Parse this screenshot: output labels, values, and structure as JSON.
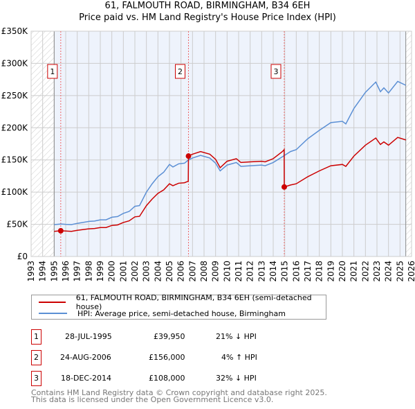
{
  "title_line1": "61, FALMOUTH ROAD, BIRMINGHAM, B34 6EH",
  "title_line2": "Price paid vs. HM Land Registry's House Price Index (HPI)",
  "chart_data": {
    "type": "line",
    "title": "61, FALMOUTH ROAD, BIRMINGHAM, B34 6EH — Price paid vs. HM Land Registry's House Price Index (HPI)",
    "xlabel": "",
    "ylabel": "",
    "xlim": [
      1993,
      2026
    ],
    "ylim": [
      0,
      350000
    ],
    "grid": true,
    "x_ticks": [
      1993,
      1994,
      1995,
      1996,
      1997,
      1998,
      1999,
      2000,
      2001,
      2002,
      2003,
      2004,
      2005,
      2006,
      2007,
      2008,
      2009,
      2010,
      2011,
      2012,
      2013,
      2014,
      2015,
      2016,
      2017,
      2018,
      2019,
      2020,
      2021,
      2022,
      2023,
      2024,
      2025,
      2026
    ],
    "y_ticks": [
      {
        "value": 0,
        "label": "£0"
      },
      {
        "value": 50000,
        "label": "£50K"
      },
      {
        "value": 100000,
        "label": "£100K"
      },
      {
        "value": 150000,
        "label": "£150K"
      },
      {
        "value": 200000,
        "label": "£200K"
      },
      {
        "value": 250000,
        "label": "£250K"
      },
      {
        "value": 300000,
        "label": "£300K"
      },
      {
        "value": 350000,
        "label": "£350K"
      }
    ],
    "shaded_range": [
      1995.0,
      2025.5
    ],
    "hatched_ranges": [
      [
        1993,
        1995.0
      ],
      [
        2025.5,
        2026
      ]
    ],
    "legend_placement": "below",
    "series": [
      {
        "name": "61, FALMOUTH ROAD, BIRMINGHAM, B34 6EH (semi-detached house)",
        "color": "#cc0000",
        "x": [
          1995.0,
          1995.57,
          1996,
          1996.5,
          1997,
          1998,
          1998.5,
          1999,
          1999.5,
          2000,
          2000.5,
          2001,
          2001.5,
          2002,
          2002.4,
          2003,
          2003.5,
          2004,
          2004.5,
          2005,
          2005.3,
          2005.8,
          2006.3,
          2006.63,
          2006.65,
          2007,
          2007.7,
          2008.5,
          2009,
          2009.4,
          2010,
          2010.8,
          2011.2,
          2012,
          2013,
          2013.3,
          2014,
          2014.8,
          2014.95,
          2014.96,
          2015.5,
          2016,
          2017,
          2018,
          2019,
          2020,
          2020.3,
          2021,
          2022,
          2022.9,
          2023.3,
          2023.6,
          2024,
          2024.8,
          2025.5
        ],
        "y": [
          39100,
          39950,
          39500,
          39100,
          40700,
          43000,
          43500,
          45000,
          45000,
          48200,
          49000,
          52900,
          55300,
          61600,
          62400,
          79000,
          89300,
          98000,
          103500,
          113000,
          110000,
          113800,
          114600,
          117000,
          156000,
          159000,
          163000,
          159000,
          151000,
          138000,
          148000,
          152000,
          146000,
          147000,
          148000,
          147000,
          152000,
          163000,
          166000,
          108000,
          111000,
          113000,
          124000,
          133000,
          141000,
          143000,
          140000,
          156000,
          173000,
          184000,
          174000,
          178000,
          173000,
          185000,
          181000
        ]
      },
      {
        "name": "HPI: Average price, semi-detached house, Birmingham",
        "color": "#5b8fd4",
        "x": [
          1995.0,
          1995.6,
          1996,
          1996.5,
          1997,
          1998,
          1998.5,
          1999,
          1999.5,
          2000,
          2000.5,
          2001,
          2001.5,
          2002,
          2002.4,
          2003,
          2003.5,
          2004,
          2004.5,
          2005,
          2005.3,
          2005.8,
          2006.3,
          2006.65,
          2007,
          2007.7,
          2008.5,
          2009,
          2009.4,
          2010,
          2010.8,
          2011.2,
          2012,
          2013,
          2013.3,
          2014,
          2014.8,
          2015.5,
          2016,
          2017,
          2018,
          2019,
          2020,
          2020.3,
          2021,
          2022,
          2022.9,
          2023.3,
          2023.6,
          2024,
          2024.8,
          2025.5
        ],
        "y": [
          49500,
          50500,
          50000,
          49500,
          51500,
          54500,
          55000,
          57000,
          57000,
          61000,
          62000,
          67000,
          70000,
          78000,
          79000,
          100000,
          113000,
          124000,
          131000,
          143000,
          139000,
          144000,
          145000,
          150000,
          153000,
          157000,
          153000,
          145000,
          133000,
          142000,
          146000,
          140000,
          141000,
          142000,
          141000,
          146000,
          155000,
          163000,
          166000,
          183000,
          196000,
          208000,
          210000,
          206000,
          230000,
          255000,
          271000,
          256000,
          262000,
          254000,
          272000,
          266000
        ]
      }
    ],
    "sales": [
      {
        "label": "1",
        "x": 1995.57,
        "y": 39950
      },
      {
        "label": "2",
        "x": 2006.65,
        "y": 156000
      },
      {
        "label": "3",
        "x": 2014.96,
        "y": 108000
      }
    ]
  },
  "legend": {
    "property_label": "61, FALMOUTH ROAD, BIRMINGHAM, B34 6EH (semi-detached house)",
    "hpi_label": "HPI: Average price, semi-detached house, Birmingham"
  },
  "transactions": [
    {
      "num": "1",
      "date": "28-JUL-1995",
      "price": "£39,950",
      "hpi": "21% ↓ HPI"
    },
    {
      "num": "2",
      "date": "24-AUG-2006",
      "price": "£156,000",
      "hpi": "4% ↑ HPI"
    },
    {
      "num": "3",
      "date": "18-DEC-2014",
      "price": "£108,000",
      "hpi": "32% ↓ HPI"
    }
  ],
  "footer_line1": "Contains HM Land Registry data © Crown copyright and database right 2025.",
  "footer_line2": "This data is licensed under the Open Government Licence v3.0."
}
